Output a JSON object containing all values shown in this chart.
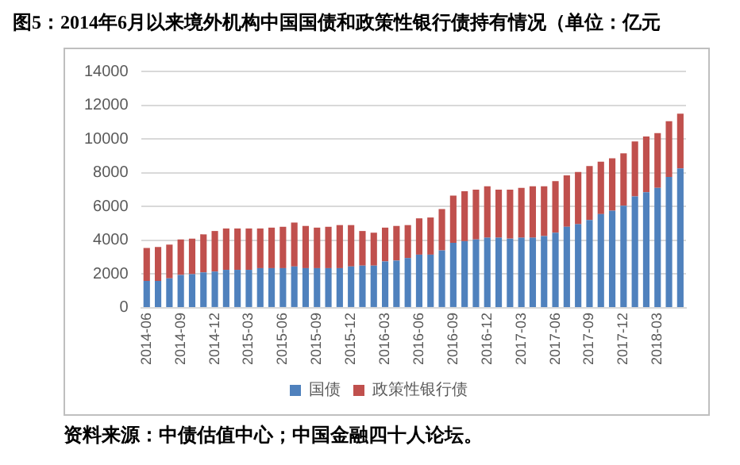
{
  "chart_data": {
    "type": "bar",
    "title": "图5：2014年6月以来境外机构中国国债和政策性银行债持有情况（单位：亿元",
    "categories": [
      "2014-06",
      null,
      null,
      "2014-09",
      null,
      null,
      "2014-12",
      null,
      null,
      "2015-03",
      null,
      null,
      "2015-06",
      null,
      null,
      "2015-09",
      null,
      null,
      "2015-12",
      null,
      null,
      "2016-03",
      null,
      null,
      "2016-06",
      null,
      null,
      "2016-09",
      null,
      null,
      "2016-12",
      null,
      null,
      "2017-03",
      null,
      null,
      "2017-06",
      null,
      null,
      "2017-09",
      null,
      null,
      "2017-12",
      null,
      null,
      "2018-03",
      null,
      null
    ],
    "series": [
      {
        "name": "国债",
        "color": "#4f81bd",
        "values": [
          1600,
          1600,
          1750,
          1950,
          2000,
          2100,
          2150,
          2250,
          2250,
          2250,
          2350,
          2350,
          2350,
          2450,
          2350,
          2350,
          2350,
          2350,
          2450,
          2500,
          2500,
          2750,
          2800,
          2950,
          3150,
          3150,
          3400,
          3850,
          3950,
          4050,
          4150,
          4150,
          4100,
          4150,
          4150,
          4250,
          4450,
          4800,
          4950,
          5200,
          5550,
          5750,
          6050,
          6600,
          6850,
          7100,
          7750,
          8250
        ]
      },
      {
        "name": "政策性银行债",
        "color": "#c0504d",
        "values": [
          1950,
          2000,
          2000,
          2100,
          2100,
          2250,
          2400,
          2450,
          2450,
          2450,
          2350,
          2400,
          2450,
          2600,
          2500,
          2400,
          2450,
          2550,
          2450,
          2050,
          1950,
          2000,
          2050,
          1950,
          2150,
          2200,
          2450,
          2800,
          2950,
          2950,
          3050,
          2850,
          2900,
          2950,
          3050,
          2950,
          3050,
          3050,
          3100,
          3200,
          3100,
          3100,
          3100,
          3250,
          3300,
          3250,
          3300,
          3250
        ]
      }
    ],
    "stacked": true,
    "ylim": [
      0,
      14000
    ],
    "yticks": [
      0,
      2000,
      4000,
      6000,
      8000,
      10000,
      12000,
      14000
    ],
    "grid": "y",
    "legend": "bottom",
    "annotations": [
      "资料来源：中债估值中心；中国金融四十人论坛。"
    ]
  }
}
